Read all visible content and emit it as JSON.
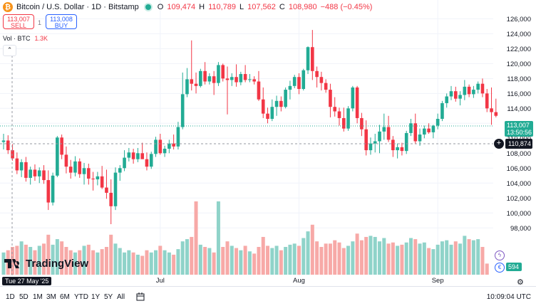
{
  "header": {
    "title": "Bitcoin / U.S. Dollar · 1D · Bitstamp",
    "ohlc": [
      {
        "l": "O",
        "v": "109,474"
      },
      {
        "l": "H",
        "v": "110,789"
      },
      {
        "l": "L",
        "v": "107,562"
      },
      {
        "l": "C",
        "v": "108,980"
      }
    ],
    "change": "−488 (−0.45%)"
  },
  "trade": {
    "sell_price": "113,007",
    "sell_label": "SELL",
    "spread": "1",
    "buy_price": "113,008",
    "buy_label": "BUY"
  },
  "volume": {
    "label": "Vol · BTC",
    "value": "1.3K"
  },
  "brand": "TradingView",
  "crosshair_date": "Tue 27 May '25",
  "price_tags": {
    "current": "113,007",
    "countdown": "13:50:56",
    "crosshair": "110,874",
    "volume": "594"
  },
  "ranges": [
    "1D",
    "5D",
    "1M",
    "3M",
    "6M",
    "YTD",
    "1Y",
    "5Y",
    "All"
  ],
  "clock": "10:09:04 UTC",
  "colors": {
    "up": "#22ab94",
    "down": "#f23645",
    "up_vol": "#8fd3c9",
    "down_vol": "#f7a9a7",
    "accent": "#2962ff"
  },
  "chart_data": {
    "type": "candlestick",
    "y_ticks": [
      98000,
      100000,
      102000,
      104000,
      106000,
      108000,
      110000,
      112000,
      114000,
      116000,
      118000,
      120000,
      122000,
      124000,
      126000
    ],
    "ylim": [
      96500,
      126700
    ],
    "x_labels": [
      {
        "label": "Jul",
        "index": 35
      },
      {
        "label": "Aug",
        "index": 66
      },
      {
        "label": "Sep",
        "index": 97
      }
    ],
    "ohlc": [
      [
        109500,
        110600,
        108500,
        109700
      ],
      [
        109700,
        110400,
        107900,
        108400
      ],
      [
        108400,
        109200,
        107000,
        107300
      ],
      [
        107300,
        108100,
        105200,
        105700
      ],
      [
        105700,
        107200,
        104800,
        106800
      ],
      [
        106800,
        107500,
        104200,
        104700
      ],
      [
        104700,
        106200,
        103800,
        105800
      ],
      [
        105800,
        106500,
        104300,
        104900
      ],
      [
        104900,
        106100,
        104000,
        105700
      ],
      [
        105700,
        106400,
        103900,
        104400
      ],
      [
        104400,
        105700,
        100400,
        101400
      ],
      [
        101400,
        105400,
        101000,
        105000
      ],
      [
        105000,
        110300,
        104800,
        110100
      ],
      [
        110100,
        110500,
        107200,
        107800
      ],
      [
        107800,
        108900,
        105300,
        106200
      ],
      [
        106200,
        107100,
        104600,
        105400
      ],
      [
        105400,
        107600,
        104900,
        106900
      ],
      [
        106900,
        107300,
        104700,
        105200
      ],
      [
        105200,
        106700,
        103800,
        106000
      ],
      [
        106000,
        106600,
        103800,
        104600
      ],
      [
        104600,
        105500,
        103000,
        104500
      ],
      [
        104500,
        105500,
        103700,
        104900
      ],
      [
        104900,
        106300,
        103200,
        103400
      ],
      [
        103400,
        105800,
        101900,
        102700
      ],
      [
        102700,
        104500,
        98500,
        100900
      ],
      [
        100900,
        106100,
        100400,
        105400
      ],
      [
        105400,
        106400,
        104300,
        106000
      ],
      [
        106000,
        108400,
        105600,
        107400
      ],
      [
        107400,
        108700,
        106900,
        108100
      ],
      [
        108100,
        108600,
        106600,
        107200
      ],
      [
        107200,
        108700,
        106800,
        108000
      ],
      [
        108000,
        109400,
        107300,
        107200
      ],
      [
        107200,
        108100,
        105700,
        106200
      ],
      [
        106200,
        108200,
        105900,
        107900
      ],
      [
        107900,
        110200,
        107500,
        109800
      ],
      [
        109800,
        110600,
        107800,
        108000
      ],
      [
        108000,
        109000,
        107500,
        108600
      ],
      [
        108600,
        109800,
        108000,
        109300
      ],
      [
        109300,
        110500,
        108500,
        108900
      ],
      [
        108900,
        112200,
        108500,
        111500
      ],
      [
        111500,
        118800,
        111200,
        115900
      ],
      [
        115900,
        119400,
        115500,
        117900
      ],
      [
        117900,
        123100,
        116400,
        117300
      ],
      [
        117300,
        118800,
        116000,
        117000
      ],
      [
        117000,
        119300,
        116800,
        119000
      ],
      [
        119000,
        120200,
        117200,
        117600
      ],
      [
        117600,
        118700,
        117200,
        118300
      ],
      [
        118300,
        119000,
        115800,
        117400
      ],
      [
        117400,
        120200,
        117000,
        119800
      ],
      [
        119800,
        120000,
        117600,
        118000
      ],
      [
        118000,
        119600,
        113200,
        117800
      ],
      [
        117800,
        118700,
        117000,
        118200
      ],
      [
        118200,
        119900,
        116900,
        117500
      ],
      [
        117500,
        118900,
        117100,
        118600
      ],
      [
        118600,
        119800,
        117500,
        117800
      ],
      [
        117800,
        118600,
        117500,
        117900
      ],
      [
        117900,
        118300,
        117200,
        117600
      ],
      [
        117600,
        119000,
        115000,
        115200
      ],
      [
        115200,
        116800,
        112700,
        113300
      ],
      [
        113300,
        114100,
        112000,
        112600
      ],
      [
        112600,
        115200,
        112300,
        114200
      ],
      [
        114200,
        115700,
        113000,
        115000
      ],
      [
        115000,
        115600,
        113600,
        114200
      ],
      [
        114200,
        116800,
        114000,
        116500
      ],
      [
        116500,
        117700,
        115200,
        117000
      ],
      [
        117000,
        118500,
        116700,
        118200
      ],
      [
        118200,
        118700,
        115900,
        116600
      ],
      [
        116600,
        119300,
        116400,
        119100
      ],
      [
        119100,
        122300,
        118600,
        122200
      ],
      [
        122200,
        124500,
        117800,
        119000
      ],
      [
        119000,
        119600,
        116800,
        118200
      ],
      [
        118200,
        118900,
        116400,
        117400
      ],
      [
        117400,
        117900,
        116100,
        116500
      ],
      [
        116500,
        117300,
        112800,
        114200
      ],
      [
        114200,
        115500,
        112900,
        113600
      ],
      [
        113600,
        114100,
        111700,
        112700
      ],
      [
        112700,
        114100,
        110900,
        111300
      ],
      [
        111300,
        114300,
        111000,
        114000
      ],
      [
        114000,
        117000,
        113600,
        116800
      ],
      [
        116800,
        117000,
        112000,
        112700
      ],
      [
        112700,
        113400,
        110300,
        111200
      ],
      [
        111200,
        112400,
        107700,
        108400
      ],
      [
        108400,
        110100,
        107800,
        109300
      ],
      [
        109300,
        110600,
        108100,
        109600
      ],
      [
        109600,
        111800,
        108000,
        110900
      ],
      [
        110900,
        113300,
        109800,
        111500
      ],
      [
        111500,
        113000,
        109500,
        109800
      ],
      [
        109800,
        110300,
        107500,
        108400
      ],
      [
        108400,
        109300,
        107300,
        108800
      ],
      [
        108800,
        109400,
        107700,
        108300
      ],
      [
        108300,
        111000,
        107900,
        110700
      ],
      [
        110700,
        112600,
        110300,
        112000
      ],
      [
        112000,
        113300,
        109200,
        109600
      ],
      [
        109600,
        111300,
        109000,
        110500
      ],
      [
        110500,
        111700,
        110000,
        111300
      ],
      [
        111300,
        112000,
        110600,
        110800
      ],
      [
        110800,
        111800,
        110000,
        111700
      ],
      [
        111700,
        113300,
        111200,
        112600
      ],
      [
        112600,
        115000,
        112300,
        114700
      ],
      [
        114700,
        116000,
        114100,
        115600
      ],
      [
        115600,
        117000,
        115100,
        116300
      ],
      [
        116300,
        116900,
        114900,
        115300
      ],
      [
        115300,
        116300,
        114400,
        115800
      ],
      [
        115800,
        117800,
        115100,
        116900
      ],
      [
        116900,
        117200,
        115500,
        115900
      ],
      [
        115900,
        117000,
        115400,
        116500
      ],
      [
        116500,
        117600,
        116000,
        117300
      ],
      [
        117300,
        118000,
        115500,
        116000
      ],
      [
        116000,
        116600,
        113500,
        114000
      ],
      [
        114000,
        116800,
        111800,
        113500
      ],
      [
        113500,
        115300,
        112800,
        113007
      ]
    ],
    "volume": [
      20,
      22,
      25,
      26,
      30,
      27,
      25,
      22,
      26,
      28,
      36,
      27,
      32,
      30,
      25,
      22,
      20,
      22,
      26,
      27,
      22,
      20,
      23,
      25,
      36,
      28,
      24,
      20,
      22,
      20,
      18,
      17,
      22,
      20,
      22,
      26,
      22,
      20,
      18,
      23,
      30,
      32,
      34,
      66,
      27,
      25,
      24,
      20,
      66,
      25,
      30,
      26,
      24,
      22,
      26,
      21,
      19,
      25,
      34,
      26,
      24,
      26,
      22,
      25,
      27,
      28,
      26,
      33,
      39,
      45,
      30,
      25,
      28,
      28,
      31,
      29,
      24,
      26,
      30,
      37,
      31,
      34,
      35,
      34,
      30,
      33,
      28,
      29,
      26,
      27,
      29,
      33,
      32,
      28,
      29,
      24,
      23,
      27,
      30,
      31,
      27,
      30,
      28,
      35,
      32,
      31,
      32,
      25,
      10
    ]
  }
}
